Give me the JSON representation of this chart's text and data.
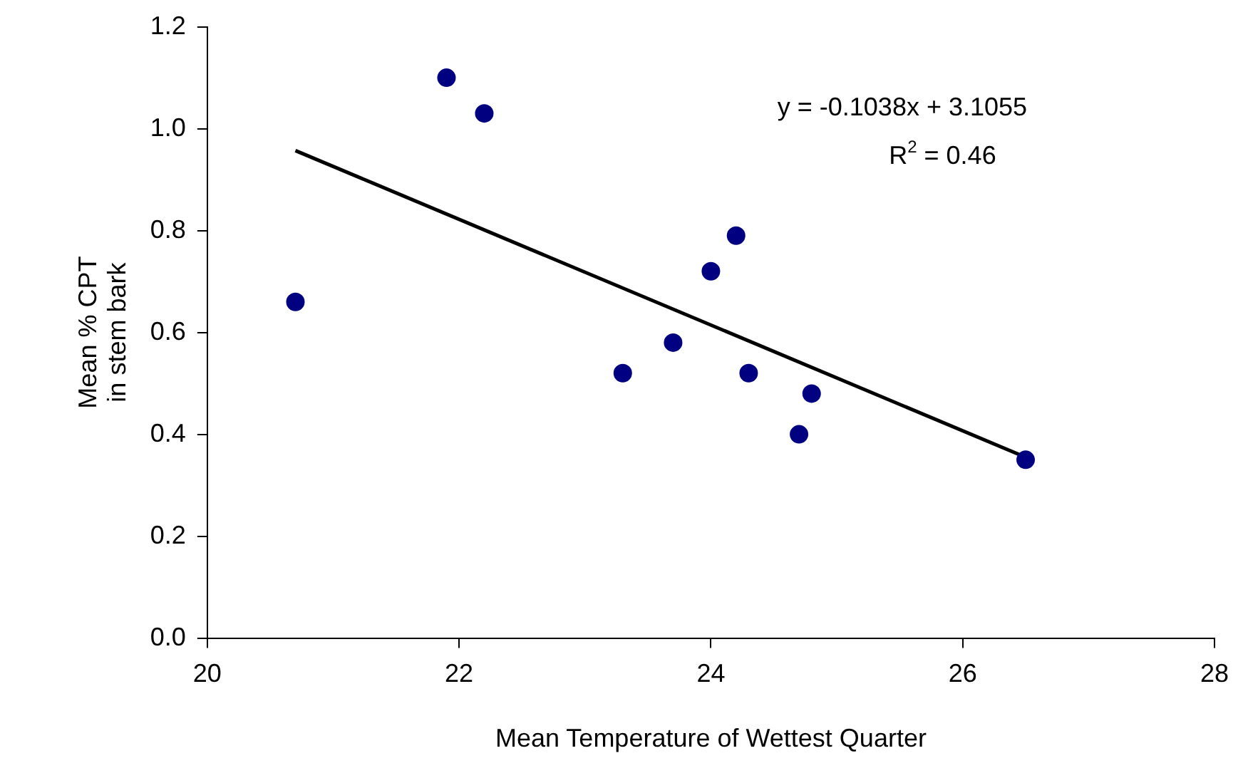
{
  "chart_data": {
    "type": "scatter",
    "xlabel": "Mean Temperature of Wettest Quarter",
    "ylabel": "Mean % CPT\nin stem bark",
    "xlim": [
      20,
      28
    ],
    "xticks": [
      20,
      22,
      24,
      26,
      28
    ],
    "ylim": [
      0,
      1.2
    ],
    "yticks": [
      {
        "value": 0,
        "label": "0.0"
      },
      {
        "value": 0.2,
        "label": "0.2"
      },
      {
        "value": 0.4,
        "label": "0.4"
      },
      {
        "value": 0.6,
        "label": "0.6"
      },
      {
        "value": 0.8,
        "label": "0.8"
      },
      {
        "value": 1,
        "label": "1.0"
      },
      {
        "value": 1.2,
        "label": "1.2"
      }
    ],
    "grid": false,
    "legend": false,
    "marker": "circle",
    "annotations": [
      "y = -0.1038x + 3.1055",
      "R$^{2}$ = 0.46"
    ],
    "series": [
      {
        "type": "scatter",
        "color": "#000080",
        "x": [
          20.7,
          21.9,
          22.2,
          23.3,
          23.7,
          24.0,
          24.2,
          24.3,
          24.8,
          24.7,
          26.5
        ],
        "values": [
          0.66,
          1.1,
          1.03,
          0.52,
          0.58,
          0.72,
          0.79,
          0.52,
          0.48,
          0.4,
          0.35
        ]
      },
      {
        "type": "line",
        "color": "#000000",
        "marker": "none",
        "line_style": "solid",
        "x": [
          20.7,
          26.5
        ],
        "values": [
          0.957,
          0.355
        ]
      }
    ]
  }
}
